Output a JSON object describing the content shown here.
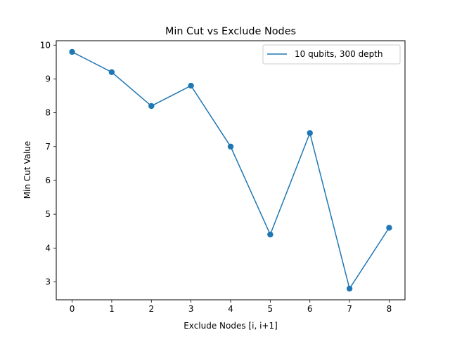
{
  "chart_data": {
    "type": "line",
    "title": "Min Cut vs Exclude Nodes",
    "xlabel": "Exclude Nodes [i, i+1]",
    "ylabel": "Min Cut Value",
    "x": [
      0,
      1,
      2,
      3,
      4,
      5,
      6,
      7,
      8
    ],
    "xlim": [
      -0.4,
      8.4
    ],
    "ylim": [
      2.47,
      10.13
    ],
    "xticks": [
      "0",
      "1",
      "2",
      "3",
      "4",
      "5",
      "6",
      "7",
      "8"
    ],
    "yticks": [
      "3",
      "4",
      "5",
      "6",
      "7",
      "8",
      "9",
      "10"
    ],
    "grid": false,
    "legend_position": "upper right",
    "series": [
      {
        "name": "10 qubits, 300 depth",
        "color": "#1f77b4",
        "marker": "circle",
        "values": [
          9.8,
          9.2,
          8.2,
          8.8,
          7.0,
          4.4,
          7.4,
          2.8,
          4.6
        ]
      }
    ]
  }
}
